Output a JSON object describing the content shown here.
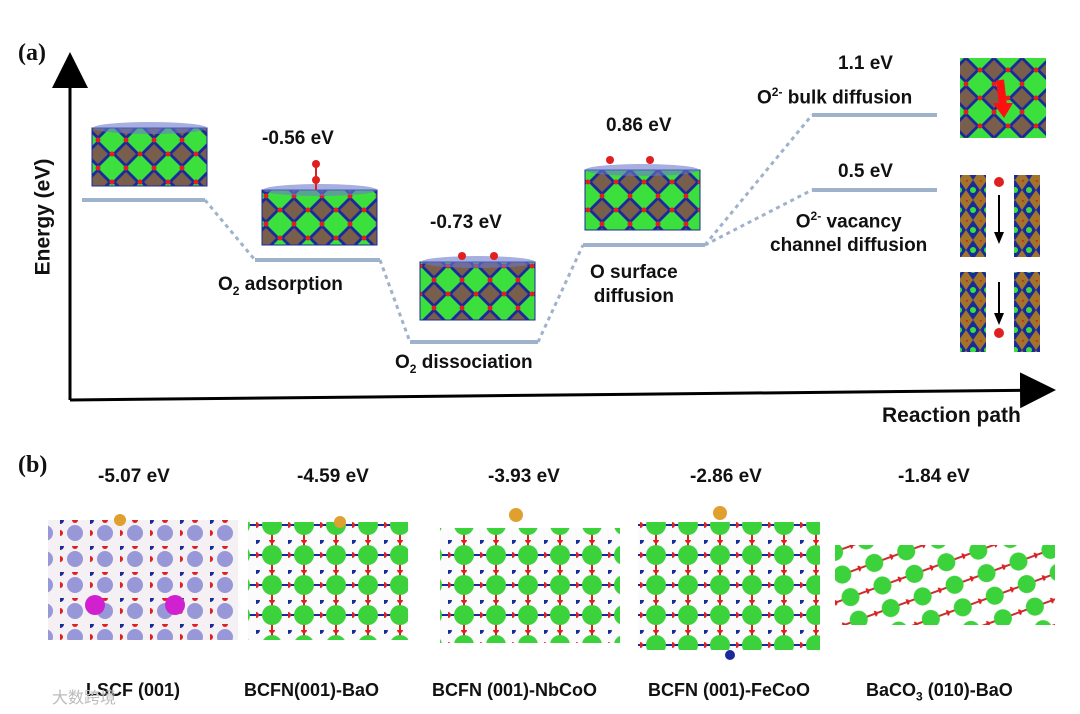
{
  "panel_a": {
    "label": "(a)",
    "y_axis_title": "Energy (eV)",
    "x_axis_title": "Reaction path",
    "levels": [
      {
        "energy_label": "",
        "step": ""
      },
      {
        "energy_label": "-0.56 eV",
        "step_main": "O",
        "step_sub": "2",
        "step_rest": " adsorption"
      },
      {
        "energy_label": "-0.73 eV",
        "step_main": "O",
        "step_sub": "2",
        "step_rest": " dissociation"
      },
      {
        "energy_label": "0.86 eV",
        "step_line1": "O surface",
        "step_line2": "diffusion"
      },
      {
        "energy_label": "1.1 eV",
        "step_main": "O",
        "step_sup": "2-",
        "step_rest": " bulk diffusion"
      },
      {
        "energy_label": "0.5 eV",
        "step_main": "O",
        "step_sup": "2-",
        "step_rest": " vacancy",
        "step_line2": "channel diffusion"
      }
    ]
  },
  "panel_b": {
    "label": "(b)",
    "structures": [
      {
        "energy": "-5.07 eV",
        "name": "LSCF (001)"
      },
      {
        "energy": "-4.59 eV",
        "name": "BCFN(001)-BaO"
      },
      {
        "energy": "-3.93 eV",
        "name": "BCFN (001)-NbCoO"
      },
      {
        "energy": "-2.86 eV",
        "name": "BCFN (001)-FeCoO"
      },
      {
        "energy": "-1.84 eV",
        "name_main": "BaCO",
        "name_sub": "3",
        "name_rest": " (010)-BaO"
      }
    ]
  },
  "watermark": "大数跨境",
  "colors": {
    "level": "#9fb2cc",
    "octa_blue": "#1a2a9a",
    "octa_brown": "#a0742a",
    "green": "#3ce03c",
    "red": "#e02020"
  }
}
